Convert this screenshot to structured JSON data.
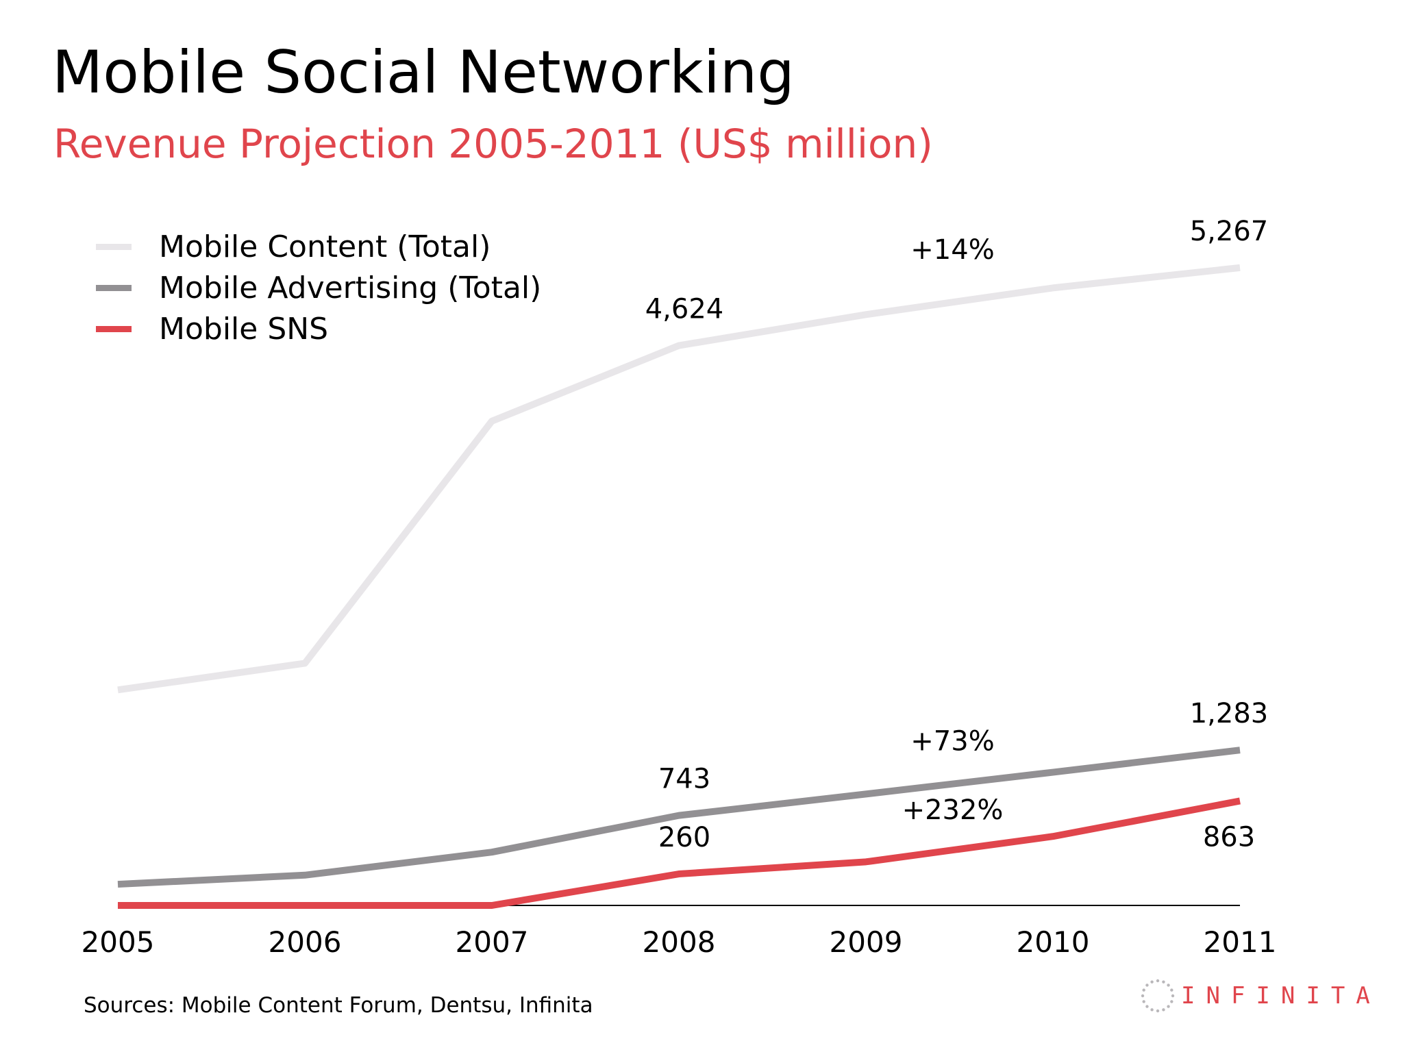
{
  "colors": {
    "title": "#000000",
    "accent": "#e0454c",
    "content_line": "#e8e6e9",
    "advertising_line": "#929093",
    "sns_line": "#e0454c",
    "axis": "#000000"
  },
  "title": "Mobile Social Networking",
  "subtitle": "Revenue Projection 2005-2011 (US$ million)",
  "sources": "Sources: Mobile Content Forum, Dentsu, Infinita",
  "logo": {
    "text": "INFINITA"
  },
  "chart_data": {
    "type": "line",
    "title": "Mobile Social Networking",
    "subtitle": "Revenue Projection 2005-2011 (US$ million)",
    "x": [
      "2005",
      "2006",
      "2007",
      "2008",
      "2009",
      "2010",
      "2011"
    ],
    "ylim": [
      0,
      5600
    ],
    "grid": false,
    "legend_position": "top-left",
    "series": [
      {
        "name": "Mobile Content (Total)",
        "color": "#e8e6e9",
        "values": [
          1780,
          2000,
          4000,
          4624,
          4880,
          5100,
          5267
        ]
      },
      {
        "name": "Mobile Advertising (Total)",
        "color": "#929093",
        "values": [
          175,
          250,
          440,
          743,
          920,
          1100,
          1283
        ]
      },
      {
        "name": "Mobile SNS",
        "color": "#e0454c",
        "values": [
          0,
          0,
          0,
          260,
          360,
          570,
          863
        ]
      }
    ],
    "data_labels": [
      {
        "series": 0,
        "x": "2008",
        "text": "4,624"
      },
      {
        "series": 0,
        "x": "2011",
        "text": "5,267"
      },
      {
        "series": 1,
        "x": "2008",
        "text": "743"
      },
      {
        "series": 1,
        "x": "2011",
        "text": "1,283"
      },
      {
        "series": 2,
        "x": "2008",
        "text": "260"
      },
      {
        "series": 2,
        "x": "2011",
        "text": "863"
      }
    ],
    "annotations": [
      {
        "series": 0,
        "text": "+14%"
      },
      {
        "series": 1,
        "text": "+73%"
      },
      {
        "series": 2,
        "text": "+232%"
      }
    ]
  }
}
